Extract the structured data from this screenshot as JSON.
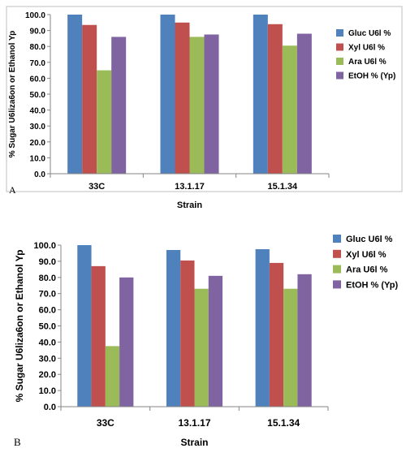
{
  "chart_data": [
    {
      "type": "bar",
      "panel_label": "A",
      "categories": [
        "33C",
        "13.1.17",
        "15.1.34"
      ],
      "series": [
        {
          "name": "Gluc U6l %",
          "color": "#4f81bd",
          "values": [
            100,
            100,
            100
          ]
        },
        {
          "name": "Xyl U6l %",
          "color": "#c0504d",
          "values": [
            93.5,
            95,
            94
          ]
        },
        {
          "name": "Ara U6l %",
          "color": "#9bbb59",
          "values": [
            65,
            86,
            80.5
          ]
        },
        {
          "name": "EtOH % (Yp)",
          "color": "#8064a2",
          "values": [
            86,
            87.5,
            88
          ]
        }
      ],
      "yticks": [
        "0.0",
        "10.0",
        "20.0",
        "30.0",
        "40.0",
        "50.0",
        "60.0",
        "70.0",
        "80.0",
        "90.0",
        "100.0"
      ],
      "xlabel": "Strain",
      "ylabel": "% Sugar U6liza6on or Ethanol Yp",
      "ylim": [
        0,
        100
      ],
      "grid": false,
      "legend": "right"
    },
    {
      "type": "bar",
      "panel_label": "B",
      "categories": [
        "33C",
        "13.1.17",
        "15.1.34"
      ],
      "series": [
        {
          "name": "Gluc U6l %",
          "color": "#4f81bd",
          "values": [
            100,
            97,
            97.5
          ]
        },
        {
          "name": "Xyl U6l %",
          "color": "#c0504d",
          "values": [
            87,
            90.5,
            89
          ]
        },
        {
          "name": "Ara U6l %",
          "color": "#9bbb59",
          "values": [
            37.5,
            73,
            73
          ]
        },
        {
          "name": "EtOH % (Yp)",
          "color": "#8064a2",
          "values": [
            80,
            81,
            82
          ]
        }
      ],
      "yticks": [
        "0.0",
        "10.0",
        "20.0",
        "30.0",
        "40.0",
        "50.0",
        "60.0",
        "70.0",
        "80.0",
        "90.0",
        "100.0"
      ],
      "xlabel": "Strain",
      "ylabel": "% Sugar U6liza6on or Ethanol Yp",
      "ylim": [
        0,
        100
      ],
      "grid": false,
      "legend": "right"
    }
  ]
}
